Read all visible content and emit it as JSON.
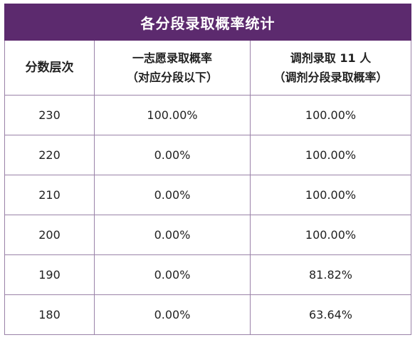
{
  "table": {
    "title": "各分段录取概率统计",
    "headers": {
      "col0": "分数层次",
      "col1_line1": "一志愿录取概率",
      "col1_line2": "（对应分段以下）",
      "col2_line1_prefix": "调剂录取 ",
      "col2_line1_num": "11",
      "col2_line1_suffix": " 人",
      "col2_line2": "（调剂分段录取概率）"
    },
    "rows": [
      {
        "score": "230",
        "first_choice": "100.00%",
        "adjust": "100.00%"
      },
      {
        "score": "220",
        "first_choice": "0.00%",
        "adjust": "100.00%"
      },
      {
        "score": "210",
        "first_choice": "0.00%",
        "adjust": "100.00%"
      },
      {
        "score": "200",
        "first_choice": "0.00%",
        "adjust": "100.00%"
      },
      {
        "score": "190",
        "first_choice": "0.00%",
        "adjust": "81.82%"
      },
      {
        "score": "180",
        "first_choice": "0.00%",
        "adjust": "63.64%"
      }
    ],
    "colors": {
      "header_bg": "#5c2a6e",
      "border": "#9a82a8"
    }
  }
}
